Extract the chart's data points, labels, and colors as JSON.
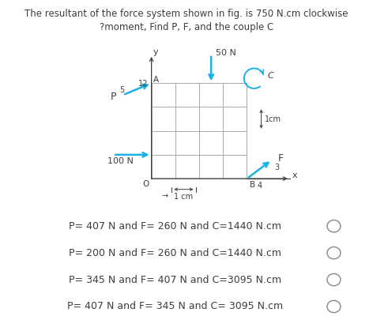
{
  "title_line1": "The resultant of the force system shown in fig. is 750 N.cm clockwise",
  "title_line2": "?moment, Find P, F, and the couple C",
  "options": [
    "P= 407 N and F= 260 N and C=1440 N.cm",
    "P= 200 N and F= 260 N and C=1440 N.cm",
    "P= 345 N and F= 407 N and C=3095 N.cm",
    "P= 407 N and F= 345 N and C= 3095 N.cm"
  ],
  "bg_color": "#ffffff",
  "text_color": "#3d3d3d",
  "arrow_color": "#1ab0e8",
  "grid_color": "#aaaaaa",
  "title_fontsize": 8.5,
  "option_fontsize": 9.0,
  "fig_width": 4.72,
  "fig_height": 4.24,
  "dpi": 100
}
